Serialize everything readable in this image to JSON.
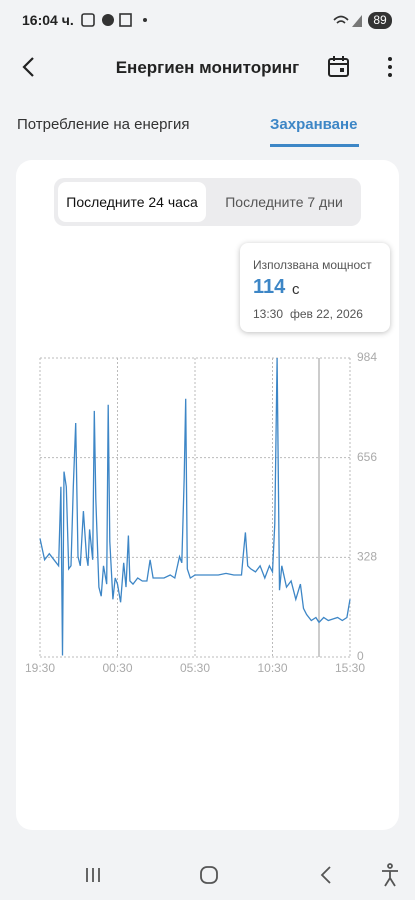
{
  "status_bar": {
    "time": "16:04 ч.",
    "battery": "89"
  },
  "header": {
    "title": "Енергиен мониторинг"
  },
  "tabs": {
    "items": [
      "Потребление на енергия",
      "Захранване"
    ],
    "active": 1
  },
  "range_toggle": {
    "options": [
      "Последните 24 часа",
      "Последните 7 дни"
    ],
    "active": 0
  },
  "tooltip": {
    "label": "Използвана мощност",
    "value": 114,
    "unit": "с",
    "time": "13:30",
    "date": "фев 22, 2026"
  },
  "chart_data": {
    "type": "line",
    "x": [
      0,
      0.3,
      0.6,
      0.9,
      1.2,
      1.35,
      1.45,
      1.55,
      1.7,
      1.85,
      2.0,
      2.15,
      2.3,
      2.45,
      2.6,
      2.8,
      3.0,
      3.1,
      3.2,
      3.4,
      3.5,
      3.6,
      3.8,
      3.95,
      4.1,
      4.3,
      4.4,
      4.5,
      4.7,
      4.85,
      5.0,
      5.2,
      5.4,
      5.55,
      5.7,
      5.8,
      6.0,
      6.3,
      6.6,
      6.9,
      7.1,
      7.3,
      7.6,
      8.0,
      8.4,
      8.7,
      9.0,
      9.15,
      9.3,
      9.4,
      9.5,
      9.7,
      10.0,
      10.5,
      11.0,
      11.5,
      12.0,
      12.5,
      13.0,
      13.1,
      13.25,
      13.4,
      13.6,
      13.9,
      14.2,
      14.5,
      14.8,
      15.0,
      15.15,
      15.3,
      15.45,
      15.6,
      15.9,
      16.2,
      16.5,
      16.8,
      17.0,
      17.2,
      17.5,
      17.8,
      18.0,
      18.3,
      18.6,
      18.9,
      19.2,
      19.5,
      19.8,
      20.0
    ],
    "series": [
      {
        "color": "#3d86c6",
        "values": [
          390,
          320,
          340,
          320,
          300,
          560,
          5,
          610,
          560,
          290,
          300,
          560,
          770,
          330,
          300,
          480,
          330,
          300,
          420,
          320,
          810,
          520,
          230,
          200,
          300,
          240,
          830,
          380,
          190,
          260,
          240,
          180,
          310,
          230,
          400,
          250,
          240,
          260,
          250,
          250,
          320,
          260,
          260,
          260,
          270,
          260,
          330,
          310,
          590,
          850,
          290,
          260,
          270,
          270,
          270,
          270,
          275,
          270,
          270,
          330,
          410,
          300,
          290,
          280,
          300,
          260,
          300,
          280,
          440,
          984,
          220,
          300,
          230,
          250,
          190,
          240,
          160,
          140,
          120,
          130,
          114,
          130,
          120,
          125,
          130,
          120,
          130,
          190
        ]
      }
    ],
    "xlim": [
      0,
      20
    ],
    "xticks": [
      {
        "value": 0,
        "label": "19:30"
      },
      {
        "value": 5,
        "label": "00:30"
      },
      {
        "value": 10,
        "label": "05:30"
      },
      {
        "value": 15,
        "label": "10:30"
      },
      {
        "value": 20,
        "label": "15:30"
      }
    ],
    "ylim": [
      0,
      984
    ],
    "yticks": [
      0,
      328,
      656,
      984
    ],
    "grid": true,
    "cursor_x": 18
  }
}
